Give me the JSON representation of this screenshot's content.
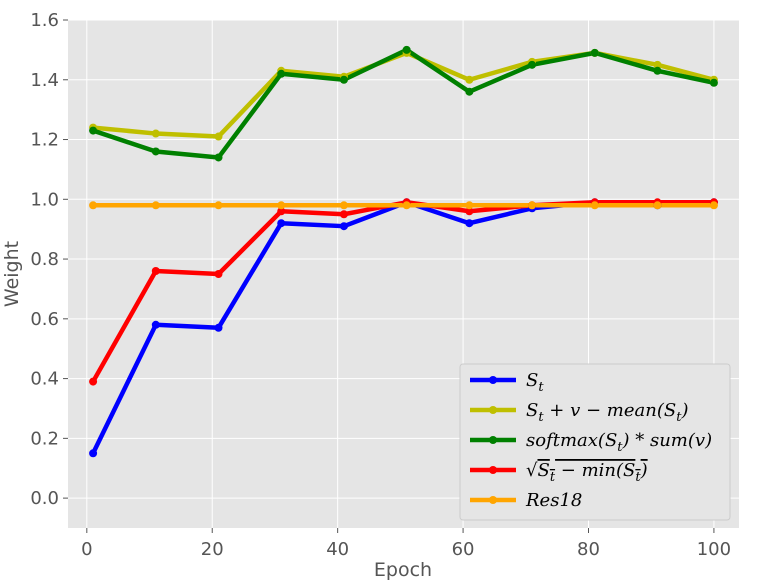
{
  "chart_data": {
    "type": "line",
    "xlabel": "Epoch",
    "ylabel": "Weight",
    "xlim": [
      -3,
      104
    ],
    "ylim": [
      -0.1,
      1.6
    ],
    "xticks": [
      0,
      20,
      40,
      60,
      80,
      100
    ],
    "yticks": [
      0.0,
      0.2,
      0.4,
      0.6,
      0.8,
      1.0,
      1.2,
      1.4,
      1.6
    ],
    "xtick_labels": [
      "0",
      "20",
      "40",
      "60",
      "80",
      "100"
    ],
    "ytick_labels": [
      "0.0",
      "0.2",
      "0.4",
      "0.6",
      "0.8",
      "1.0",
      "1.2",
      "1.4",
      "1.6"
    ],
    "grid": true,
    "legend_position": "bottom-right",
    "x": [
      1,
      11,
      21,
      31,
      41,
      51,
      61,
      71,
      81,
      91,
      100
    ],
    "series": [
      {
        "name": "S_t",
        "legend": [
          {
            "t": "S"
          },
          {
            "t": "t",
            "sub": true
          }
        ],
        "color": "#0000ff",
        "values": [
          0.15,
          0.58,
          0.57,
          0.92,
          0.91,
          0.99,
          0.92,
          0.97,
          0.99,
          0.98,
          0.99
        ]
      },
      {
        "name": "S_t + v − mean(S_t)",
        "legend": [
          {
            "t": "S"
          },
          {
            "t": "t",
            "sub": true
          },
          {
            "t": " + v − mean(S"
          },
          {
            "t": "t",
            "sub": true
          },
          {
            "t": ")"
          }
        ],
        "color": "#bfbf00",
        "values": [
          1.24,
          1.22,
          1.21,
          1.43,
          1.41,
          1.49,
          1.4,
          1.46,
          1.49,
          1.45,
          1.4
        ]
      },
      {
        "name": "softmax(S_t) * sum(v)",
        "legend": [
          {
            "t": "softmax(S"
          },
          {
            "t": "t",
            "sub": true
          },
          {
            "t": ") * sum(v)"
          }
        ],
        "color": "#008000",
        "values": [
          1.23,
          1.16,
          1.14,
          1.42,
          1.4,
          1.5,
          1.36,
          1.45,
          1.49,
          1.43,
          1.39
        ]
      },
      {
        "name": "√(S_t − min(S_t))",
        "legend": [
          {
            "t": "√"
          },
          {
            "t": "S",
            "over": true
          },
          {
            "t": "t",
            "sub": true,
            "over": true
          },
          {
            "t": " − min(S",
            "over": true
          },
          {
            "t": "t",
            "sub": true,
            "over": true
          },
          {
            "t": ")",
            "over": true
          }
        ],
        "color": "#ff0000",
        "values": [
          0.39,
          0.76,
          0.75,
          0.96,
          0.95,
          0.99,
          0.96,
          0.98,
          0.99,
          0.99,
          0.99
        ]
      },
      {
        "name": "Res18",
        "legend": [
          {
            "t": "Res18"
          }
        ],
        "color": "#ffa500",
        "values": [
          0.98,
          0.98,
          0.98,
          0.98,
          0.98,
          0.98,
          0.98,
          0.98,
          0.98,
          0.98,
          0.98
        ]
      }
    ]
  }
}
